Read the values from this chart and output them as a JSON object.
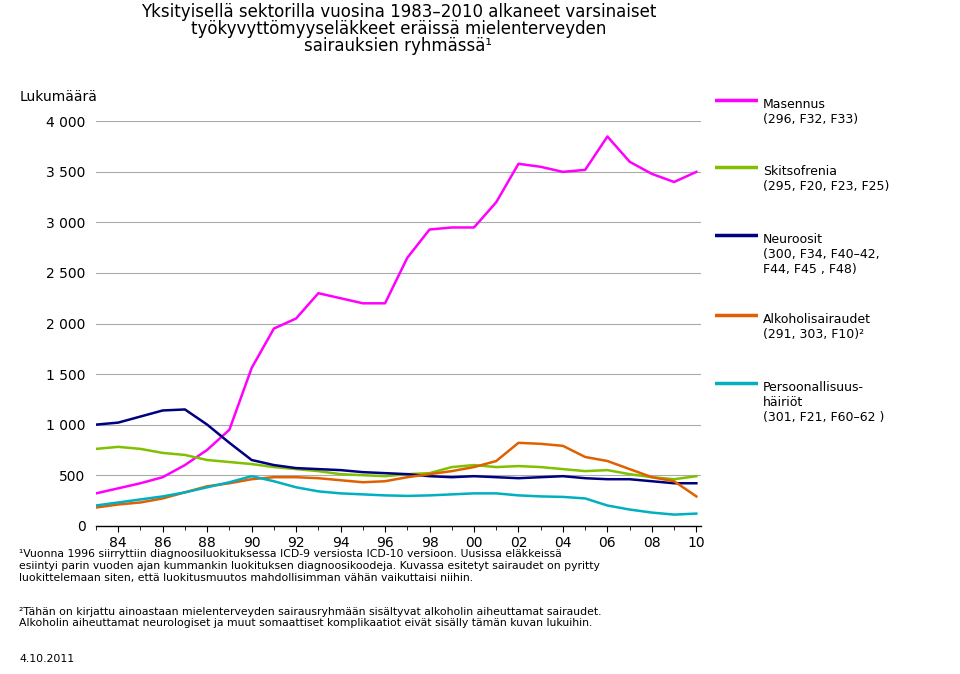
{
  "title_line1": "Yksityisellä sektorilla vuosina 1983–2010 alkaneet varsinaiset",
  "title_line2": "työkyvyttömyyseläkkeet eräissä mielenterveyden",
  "title_line3": "sairauksien ryhmässä¹",
  "ylabel": "Lukumäärä",
  "years": [
    1983,
    1984,
    1985,
    1986,
    1987,
    1988,
    1989,
    1990,
    1991,
    1992,
    1993,
    1994,
    1995,
    1996,
    1997,
    1998,
    1999,
    2000,
    2001,
    2002,
    2003,
    2004,
    2005,
    2006,
    2007,
    2008,
    2009,
    2010
  ],
  "masennus": [
    320,
    370,
    420,
    480,
    600,
    750,
    950,
    1560,
    1950,
    2050,
    2300,
    2250,
    2200,
    2200,
    2650,
    2930,
    2950,
    2950,
    3200,
    3580,
    3550,
    3500,
    3520,
    3850,
    3600,
    3480,
    3400,
    3500
  ],
  "skitsofrenia": [
    760,
    780,
    760,
    720,
    700,
    650,
    630,
    610,
    580,
    560,
    540,
    510,
    500,
    490,
    510,
    520,
    580,
    600,
    580,
    590,
    580,
    560,
    540,
    550,
    510,
    480,
    460,
    490
  ],
  "neuroosit": [
    1000,
    1020,
    1080,
    1140,
    1150,
    1000,
    820,
    650,
    600,
    570,
    560,
    550,
    530,
    520,
    510,
    490,
    480,
    490,
    480,
    470,
    480,
    490,
    470,
    460,
    460,
    440,
    420,
    420
  ],
  "alkoholi": [
    180,
    210,
    230,
    270,
    330,
    390,
    420,
    460,
    480,
    480,
    470,
    450,
    430,
    440,
    480,
    510,
    540,
    580,
    640,
    820,
    810,
    790,
    680,
    640,
    560,
    480,
    440,
    290
  ],
  "persoonallisuus": [
    200,
    230,
    260,
    290,
    330,
    380,
    430,
    490,
    440,
    380,
    340,
    320,
    310,
    300,
    295,
    300,
    310,
    320,
    320,
    300,
    290,
    285,
    270,
    200,
    160,
    130,
    110,
    120
  ],
  "masennus_color": "#FF00FF",
  "skitsofrenia_color": "#80C000",
  "neuroosit_color": "#000080",
  "alkoholi_color": "#E06000",
  "persoonallisuus_color": "#00B0C0",
  "legend_masennus": "Masennus\n(296, F32, F33)",
  "legend_skitsofrenia": "Skitsofrenia\n(295, F20, F23, F25)",
  "legend_neuroosit": "Neuroosit\n(300, F34, F40–42,\nF44, F45 , F48)",
  "legend_alkoholi": "Alkoholisairaudet\n(291, 303, F10)²",
  "legend_persoonallisuus": "Persoonallisuus-\nhäiriöt\n(301, F21, F60–62 )",
  "footnote1": "¹Vuonna 1996 siirryttiin diagnoosiluokituksessa ICD-9 versiosta ICD-10 versioon. Uusissa eläkkeissä\nesiintyi parin vuoden ajan kummankin luokituksen diagnoosikoodeja. Kuvassa esitetyt sairaudet on pyritty\nluokittelemaan siten, että luokitusmuutos mahdollisimman vähän vaikuttaisi niihin.",
  "footnote2": "²Tähän on kirjattu ainoastaan mielenterveyden sairausryhmään sisältyvat alkoholin aiheuttamat sairaudet.\nAlkoholin aiheuttamat neurologiset ja muut somaattiset komplikaatiot eivät sisälly tämän kuvan lukuihin.",
  "footnote_date": "4.10.2011",
  "ylim": [
    0,
    4000
  ],
  "yticks": [
    0,
    500,
    1000,
    1500,
    2000,
    2500,
    3000,
    3500,
    4000
  ],
  "ytick_labels": [
    "0",
    "500",
    "1 000",
    "1 500",
    "2 000",
    "2 500",
    "3 000",
    "3 500",
    "4 000"
  ],
  "xtick_labels": [
    "84",
    "86",
    "88",
    "90",
    "92",
    "94",
    "96",
    "98",
    "00",
    "02",
    "04",
    "06",
    "08",
    "10"
  ],
  "xtick_years": [
    1984,
    1986,
    1988,
    1990,
    1992,
    1994,
    1996,
    1998,
    2000,
    2002,
    2004,
    2006,
    2008,
    2010
  ]
}
